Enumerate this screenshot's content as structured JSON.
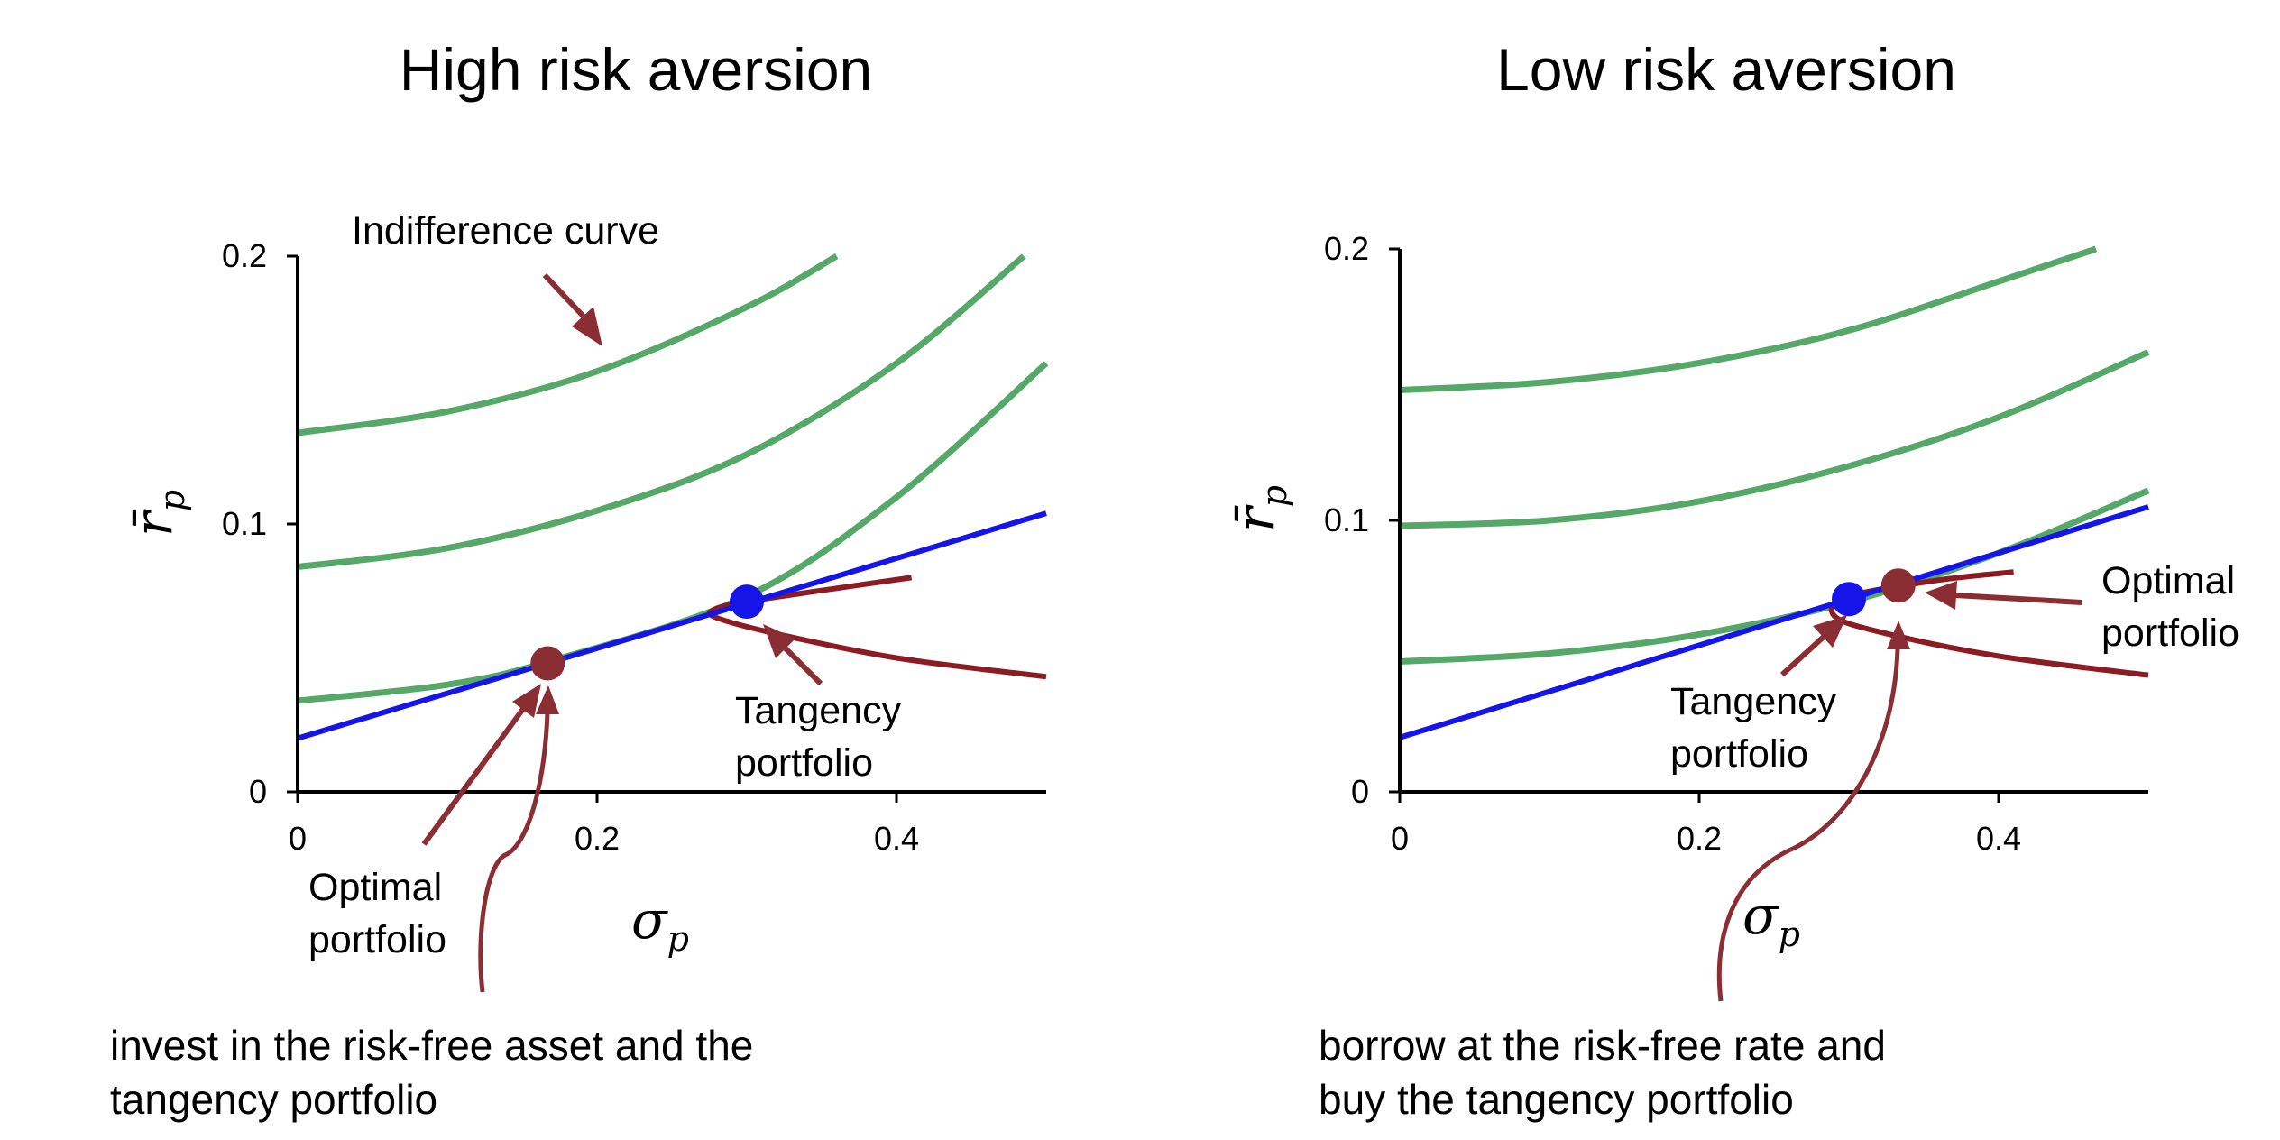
{
  "colors": {
    "indifference": "#55A868",
    "cal": "#1515E8",
    "frontier": "#8B1C24",
    "tangency_dot": "#1515E8",
    "optimal_dot": "#8B2E33",
    "arrow": "#8B2E33"
  },
  "chart_data": [
    {
      "type": "line",
      "title": "High risk aversion",
      "xlabel": "σ",
      "xlabel_sub": "p",
      "ylabel": "r̄",
      "ylabel_sub": "p",
      "xlim": [
        0,
        0.5
      ],
      "ylim": [
        0,
        0.2
      ],
      "xticks": [
        "0",
        "0.2",
        "0.4"
      ],
      "yticks": [
        "0",
        "0.1",
        "0.2"
      ],
      "series": [
        {
          "kind": "indifference",
          "x": [
            0,
            0.1,
            0.2,
            0.3,
            0.36
          ],
          "y": [
            0.134,
            0.142,
            0.157,
            0.181,
            0.2
          ]
        },
        {
          "kind": "indifference",
          "x": [
            0,
            0.1,
            0.2,
            0.3,
            0.4,
            0.485
          ],
          "y": [
            0.084,
            0.091,
            0.105,
            0.126,
            0.16,
            0.2
          ]
        },
        {
          "kind": "indifference",
          "x": [
            0,
            0.1,
            0.17,
            0.3,
            0.4,
            0.5
          ],
          "y": [
            0.034,
            0.04,
            0.049,
            0.073,
            0.11,
            0.16
          ]
        },
        {
          "kind": "cal",
          "x": [
            0,
            0.5
          ],
          "y": [
            0.02,
            0.104
          ]
        },
        {
          "kind": "frontier",
          "x": [
            0.5,
            0.4,
            0.32,
            0.28,
            0.278,
            0.3,
            0.36,
            0.41
          ],
          "y": [
            0.043,
            0.05,
            0.059,
            0.065,
            0.068,
            0.071,
            0.076,
            0.08
          ]
        }
      ],
      "points": [
        {
          "kind": "tangency",
          "x": 0.3,
          "y": 0.071
        },
        {
          "kind": "optimal",
          "x": 0.167,
          "y": 0.048
        }
      ],
      "annotations": [
        {
          "text": "Indifference curve"
        },
        {
          "lines": [
            "Tangency",
            "portfolio"
          ]
        },
        {
          "lines": [
            "Optimal",
            "portfolio"
          ]
        }
      ],
      "caption": [
        "invest in the risk-free asset and the",
        "tangency portfolio"
      ]
    },
    {
      "type": "line",
      "title": "Low risk aversion",
      "xlabel": "σ",
      "xlabel_sub": "p",
      "ylabel": "r̄",
      "ylabel_sub": "p",
      "xlim": [
        0,
        0.5
      ],
      "ylim": [
        0,
        0.2
      ],
      "xticks": [
        "0",
        "0.2",
        "0.4"
      ],
      "yticks": [
        "0",
        "0.1",
        "0.2"
      ],
      "series": [
        {
          "kind": "indifference",
          "x": [
            0,
            0.1,
            0.2,
            0.3,
            0.4,
            0.465
          ],
          "y": [
            0.148,
            0.151,
            0.158,
            0.17,
            0.188,
            0.2
          ]
        },
        {
          "kind": "indifference",
          "x": [
            0,
            0.1,
            0.2,
            0.3,
            0.4,
            0.5
          ],
          "y": [
            0.098,
            0.1,
            0.107,
            0.12,
            0.138,
            0.162
          ]
        },
        {
          "kind": "indifference",
          "x": [
            0,
            0.1,
            0.2,
            0.3,
            0.4,
            0.5
          ],
          "y": [
            0.048,
            0.051,
            0.058,
            0.07,
            0.088,
            0.111
          ]
        },
        {
          "kind": "cal",
          "x": [
            0,
            0.5
          ],
          "y": [
            0.02,
            0.105
          ]
        },
        {
          "kind": "frontier",
          "x": [
            0.5,
            0.4,
            0.32,
            0.29,
            0.3,
            0.36,
            0.41
          ],
          "y": [
            0.043,
            0.05,
            0.059,
            0.065,
            0.072,
            0.078,
            0.081
          ]
        }
      ],
      "points": [
        {
          "kind": "tangency",
          "x": 0.3,
          "y": 0.071
        },
        {
          "kind": "optimal",
          "x": 0.333,
          "y": 0.076
        }
      ],
      "annotations": [
        {
          "lines": [
            "Tangency",
            "portfolio"
          ]
        },
        {
          "lines": [
            "Optimal",
            "portfolio"
          ]
        }
      ],
      "caption": [
        "borrow at the risk-free rate and",
        "buy the tangency portfolio"
      ]
    }
  ]
}
